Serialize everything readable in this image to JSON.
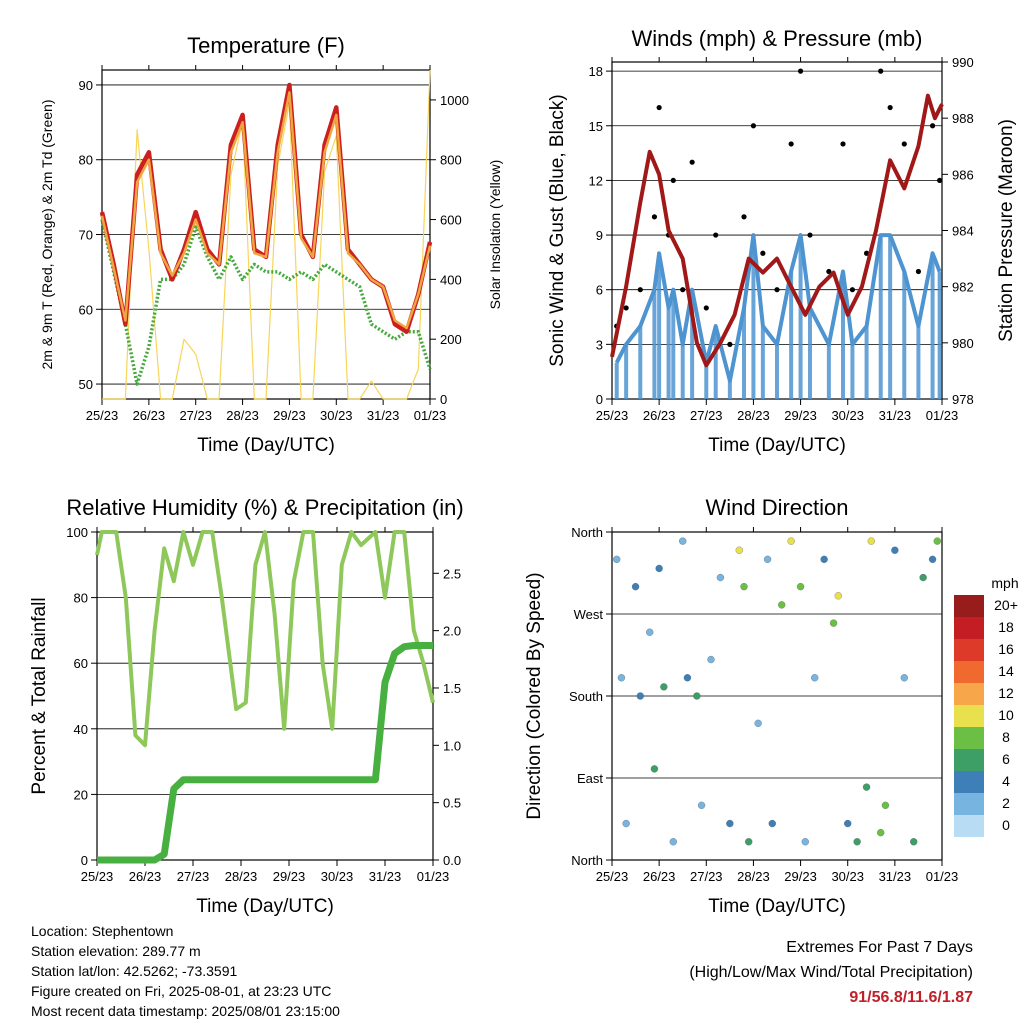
{
  "colors": {
    "temp2m": "#cc1f1f",
    "temp9m": "#f0a640",
    "dewpoint": "#44aa3c",
    "solar": "#f7d55a",
    "gust": "#000000",
    "wind": "#4d94d0",
    "pressure": "#a01818",
    "rh": "#8fc85a",
    "rain": "#47b040"
  },
  "x_ticks": [
    "25/23",
    "26/23",
    "27/23",
    "28/23",
    "29/23",
    "30/23",
    "31/23",
    "01/23"
  ],
  "chart_data": [
    {
      "type": "line",
      "title": "Temperature (F)",
      "xlabel": "Time (Day/UTC)",
      "ylabel": "2m & 9m T (Red, Orange) & 2m Td (Green)",
      "y2label": "Solar Insolation (Yellow)",
      "ylim": [
        48,
        92
      ],
      "y2lim": [
        0,
        1100
      ],
      "yticks": [
        50,
        60,
        70,
        80,
        90
      ],
      "y2ticks": [
        0,
        200,
        400,
        600,
        800,
        1000
      ],
      "x": [
        0,
        0.25,
        0.5,
        0.75,
        1,
        1.25,
        1.5,
        1.75,
        2,
        2.25,
        2.5,
        2.75,
        3,
        3.25,
        3.5,
        3.75,
        4,
        4.25,
        4.5,
        4.75,
        5,
        5.25,
        5.5,
        5.75,
        6,
        6.25,
        6.5,
        6.75,
        7
      ],
      "series": [
        {
          "name": "2m T",
          "role": "temp2m",
          "values": [
            73,
            66,
            58,
            78,
            81,
            68,
            64,
            68,
            73,
            68,
            66,
            82,
            86,
            68,
            67,
            82,
            90,
            70,
            67,
            82,
            87,
            68,
            66,
            64,
            63,
            58,
            57,
            62,
            69
          ]
        },
        {
          "name": "9m T",
          "role": "temp9m",
          "values": [
            72.5,
            65.5,
            58.5,
            77,
            80,
            67.5,
            64.5,
            67.5,
            72,
            67.5,
            66,
            81,
            85,
            67.5,
            67,
            81,
            89,
            69.5,
            67,
            81,
            86,
            67.5,
            66,
            64,
            63,
            58.5,
            57.5,
            62,
            68.5
          ]
        },
        {
          "name": "2m Td",
          "role": "dewpoint",
          "values": [
            72,
            65,
            58,
            50,
            55,
            64,
            64,
            66,
            71,
            67,
            64,
            67,
            64,
            66,
            65,
            65,
            64,
            65,
            64,
            66,
            65,
            64,
            63,
            58,
            57,
            56,
            57,
            57,
            52
          ]
        },
        {
          "name": "Solar",
          "role": "solar",
          "axis": "y2",
          "values": [
            0,
            0,
            0,
            900,
            500,
            0,
            0,
            200,
            150,
            0,
            0,
            750,
            930,
            0,
            0,
            780,
            990,
            0,
            0,
            760,
            880,
            0,
            0,
            60,
            0,
            0,
            0,
            100,
            1100
          ]
        }
      ]
    },
    {
      "type": "scatter",
      "title": "Winds (mph) & Pressure (mb)",
      "xlabel": "Time (Day/UTC)",
      "ylabel": "Sonic Wind & Gust (Blue, Black)",
      "y2label": "Station Pressure (Maroon)",
      "ylim": [
        0,
        18.5
      ],
      "y2lim": [
        978,
        990
      ],
      "yticks": [
        0,
        3,
        6,
        9,
        12,
        15,
        18
      ],
      "y2ticks": [
        978,
        980,
        982,
        984,
        986,
        988,
        990
      ],
      "series": [
        {
          "name": "Gust",
          "role": "gust",
          "x": [
            0.1,
            0.3,
            0.6,
            0.9,
            1.0,
            1.2,
            1.3,
            1.5,
            1.7,
            2.0,
            2.2,
            2.5,
            2.8,
            3.0,
            3.2,
            3.5,
            3.8,
            4.0,
            4.2,
            4.6,
            4.9,
            5.1,
            5.4,
            5.7,
            5.9,
            6.2,
            6.5,
            6.8,
            6.95
          ],
          "values": [
            4,
            5,
            6,
            10,
            16,
            9,
            12,
            6,
            13,
            5,
            9,
            3,
            10,
            15,
            8,
            6,
            14,
            18,
            9,
            7,
            14,
            6,
            8,
            18,
            16,
            14,
            7,
            15,
            12
          ]
        },
        {
          "name": "Wind",
          "role": "wind",
          "x": [
            0.1,
            0.3,
            0.6,
            0.9,
            1.0,
            1.2,
            1.3,
            1.5,
            1.7,
            2.0,
            2.2,
            2.5,
            2.8,
            3.0,
            3.2,
            3.5,
            3.8,
            4.0,
            4.2,
            4.6,
            4.9,
            5.1,
            5.4,
            5.7,
            5.9,
            6.2,
            6.5,
            6.8,
            6.95
          ],
          "values": [
            2,
            3,
            4,
            6,
            8,
            5,
            6,
            3,
            6,
            2,
            4,
            1,
            5,
            9,
            4,
            3,
            7,
            9,
            5,
            3,
            7,
            3,
            4,
            9,
            9,
            7,
            4,
            8,
            7
          ]
        },
        {
          "name": "Pressure",
          "role": "pressure",
          "axis": "y2",
          "x": [
            0,
            0.3,
            0.6,
            0.8,
            1.0,
            1.2,
            1.5,
            1.8,
            2.0,
            2.3,
            2.6,
            2.9,
            3.2,
            3.5,
            3.8,
            4.1,
            4.4,
            4.7,
            5.0,
            5.3,
            5.6,
            5.9,
            6.2,
            6.5,
            6.7,
            6.85,
            7.0
          ],
          "values": [
            979.5,
            982,
            985,
            986.8,
            986,
            984,
            983,
            980,
            979.2,
            980,
            981,
            983,
            982.5,
            983,
            982,
            981,
            982,
            982.5,
            981,
            982,
            984,
            986.5,
            985.5,
            987,
            988.8,
            988,
            988.5
          ]
        }
      ]
    },
    {
      "type": "line",
      "title": "Relative Humidity (%) & Precipitation (in)",
      "xlabel": "Time (Day/UTC)",
      "ylabel": "Percent & Total Rainfall",
      "ylim": [
        0,
        100
      ],
      "y2lim": [
        0,
        2.86
      ],
      "yticks": [
        0,
        20,
        40,
        60,
        80,
        100
      ],
      "y2ticks": [
        "0.0",
        "0.5",
        "1.0",
        "1.5",
        "2.0",
        "2.5"
      ],
      "y2tick_values": [
        0,
        0.5,
        1.0,
        1.5,
        2.0,
        2.5
      ],
      "x": [
        0,
        0.1,
        0.4,
        0.6,
        0.8,
        1.0,
        1.2,
        1.4,
        1.6,
        1.8,
        2.0,
        2.2,
        2.4,
        2.6,
        2.9,
        3.1,
        3.3,
        3.5,
        3.7,
        3.9,
        4.1,
        4.3,
        4.5,
        4.7,
        4.9,
        5.1,
        5.3,
        5.5,
        5.8,
        6.0,
        6.2,
        6.4,
        6.6,
        6.8,
        7.0
      ],
      "series": [
        {
          "name": "RH",
          "role": "rh",
          "values": [
            93,
            100,
            100,
            80,
            38,
            35,
            70,
            95,
            85,
            100,
            90,
            100,
            100,
            80,
            46,
            48,
            90,
            100,
            75,
            40,
            85,
            100,
            100,
            60,
            40,
            90,
            100,
            96,
            100,
            80,
            100,
            100,
            70,
            60,
            48
          ]
        },
        {
          "name": "Rain",
          "role": "rain",
          "axis": "y2",
          "values": [
            0,
            0,
            0,
            0,
            0,
            0,
            0,
            0.05,
            0.62,
            0.7,
            0.7,
            0.7,
            0.7,
            0.7,
            0.7,
            0.7,
            0.7,
            0.7,
            0.7,
            0.7,
            0.7,
            0.7,
            0.7,
            0.7,
            0.7,
            0.7,
            0.7,
            0.7,
            0.7,
            1.55,
            1.8,
            1.86,
            1.87,
            1.87,
            1.87
          ]
        }
      ]
    },
    {
      "type": "scatter",
      "title": "Wind Direction",
      "xlabel": "Time (Day/UTC)",
      "ylabel": "Direction (Colored By Speed)",
      "ylim": [
        0,
        360
      ],
      "yticks": [
        "North",
        "East",
        "South",
        "West",
        "North"
      ],
      "ytick_values": [
        0,
        90,
        180,
        270,
        360
      ],
      "colorbar": {
        "title": "mph",
        "labels": [
          "20+",
          "18",
          "16",
          "14",
          "12",
          "10",
          "8",
          "6",
          "4",
          "2",
          "0"
        ],
        "colors": [
          "#991c1c",
          "#c41e24",
          "#de3a2a",
          "#f06a30",
          "#f7a64a",
          "#e8e04c",
          "#6cbf45",
          "#3d9f66",
          "#3e7fb8",
          "#78b4e0",
          "#b8dcf4"
        ]
      },
      "x": [
        0.1,
        0.2,
        0.3,
        0.5,
        0.6,
        0.8,
        0.9,
        1.0,
        1.1,
        1.3,
        1.5,
        1.6,
        1.8,
        1.9,
        2.1,
        2.3,
        2.5,
        2.7,
        2.8,
        2.9,
        3.1,
        3.3,
        3.4,
        3.6,
        3.8,
        4.0,
        4.1,
        4.3,
        4.5,
        4.7,
        4.8,
        5.0,
        5.2,
        5.4,
        5.5,
        5.7,
        5.8,
        6.0,
        6.2,
        6.4,
        6.6,
        6.8,
        6.9
      ],
      "directions": [
        330,
        200,
        40,
        300,
        180,
        250,
        100,
        320,
        190,
        20,
        350,
        200,
        180,
        60,
        220,
        310,
        40,
        340,
        300,
        20,
        150,
        330,
        40,
        280,
        350,
        300,
        20,
        200,
        330,
        260,
        290,
        40,
        20,
        80,
        350,
        30,
        60,
        340,
        200,
        20,
        310,
        330,
        350
      ],
      "speeds": [
        2,
        1,
        2,
        3,
        4,
        2,
        5,
        3,
        6,
        2,
        1,
        3,
        5,
        2,
        1,
        2,
        3,
        9,
        7,
        6,
        1,
        2,
        3,
        8,
        9,
        8,
        2,
        1,
        3,
        7,
        9,
        4,
        6,
        5,
        10,
        8,
        7,
        4,
        2,
        6,
        5,
        3,
        8
      ]
    }
  ],
  "station_info": {
    "location": "Location: Stephentown",
    "elevation": "Station elevation: 289.77 m",
    "latlon": "Station lat/lon: 42.5262; -73.3591",
    "created": "Figure created on Fri, 2025-08-01, at 23:23 UTC",
    "recent": "Most recent data timestamp: 2025/08/01 23:15:00"
  },
  "extremes": {
    "line1": "Extremes For Past 7 Days",
    "line2": "(High/Low/Max Wind/Total Precipitation)",
    "values": "91/56.8/11.6/1.87"
  }
}
